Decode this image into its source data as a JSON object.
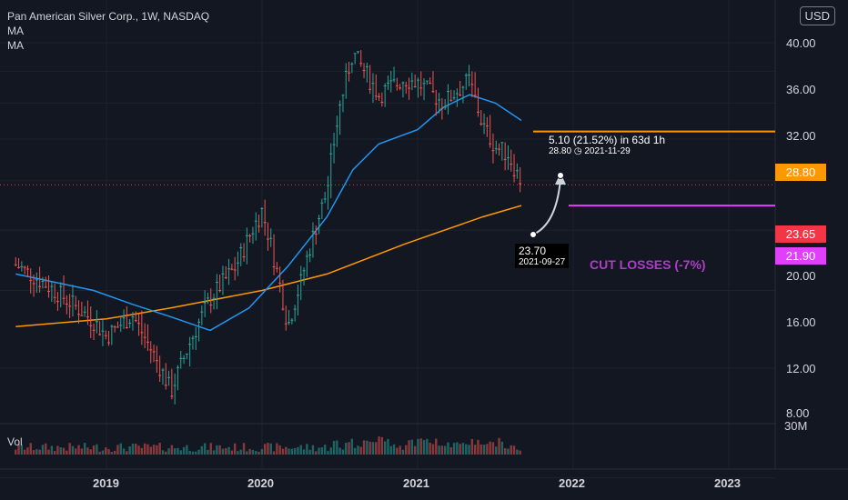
{
  "header": {
    "symbol": "Pan American Silver Corp., 1W, NASDAQ",
    "ma1": "MA",
    "ma2": "MA",
    "currency": "USD"
  },
  "volume": {
    "label": "Vol",
    "axis_label": "30M"
  },
  "yaxis": {
    "ticks": [
      "40.00",
      "36.00",
      "32.00",
      "28.80",
      "23.65",
      "21.90",
      "20.00",
      "16.00",
      "12.00",
      "8.00"
    ]
  },
  "xaxis": {
    "ticks": [
      "2019",
      "2020",
      "2021",
      "2022",
      "2023"
    ]
  },
  "price_tags": [
    {
      "label": "28.80",
      "color": "#ff9800"
    },
    {
      "label": "23.65",
      "color": "#f23645"
    },
    {
      "label": "21.90",
      "color": "#e040fb"
    }
  ],
  "annotations": {
    "move": "5.10 (21.52%) in 63d 1h",
    "move_target": "28.80",
    "move_date": "2021-11-29",
    "current": "23.70",
    "current_date": "2021-09-27",
    "cut": "CUT LOSSES (-7%)"
  },
  "colors": {
    "up": "#26a69a",
    "down": "#ef5350",
    "ma_fast": "#2196f3",
    "ma_slow": "#ff9800",
    "target": "#ff9800",
    "stop": "#e040fb",
    "last": "#f23645"
  },
  "chart_data": {
    "type": "candlestick",
    "title": "Pan American Silver Corp., 1W, NASDAQ",
    "ylim": [
      8,
      42
    ],
    "y_scale": "log",
    "x_range": [
      "2018-06",
      "2023-06"
    ],
    "price_points": [
      [
        "2018-06",
        17.6
      ],
      [
        "2018-09",
        16.0
      ],
      [
        "2018-12",
        14.3
      ],
      [
        "2019-01",
        13.5
      ],
      [
        "2019-03",
        14.6
      ],
      [
        "2019-05",
        12.2
      ],
      [
        "2019-06",
        11.0
      ],
      [
        "2019-09",
        15.5
      ],
      [
        "2019-11",
        17.5
      ],
      [
        "2020-01",
        21.5
      ],
      [
        "2020-03",
        14.0
      ],
      [
        "2020-04",
        16.5
      ],
      [
        "2020-06",
        23.0
      ],
      [
        "2020-07",
        31.5
      ],
      [
        "2020-08",
        38.5
      ],
      [
        "2020-10",
        33.0
      ],
      [
        "2020-12",
        35.0
      ],
      [
        "2021-01",
        34.5
      ],
      [
        "2021-03",
        32.0
      ],
      [
        "2021-05",
        34.8
      ],
      [
        "2021-06",
        29.5
      ],
      [
        "2021-07",
        27.2
      ],
      [
        "2021-08",
        26.5
      ],
      [
        "2021-09",
        23.7
      ]
    ],
    "ma_fast": [
      [
        "2018-06",
        17.0
      ],
      [
        "2018-12",
        16.0
      ],
      [
        "2019-03",
        15.2
      ],
      [
        "2019-06",
        14.5
      ],
      [
        "2019-09",
        13.8
      ],
      [
        "2019-12",
        15.0
      ],
      [
        "2020-03",
        17.5
      ],
      [
        "2020-06",
        21.0
      ],
      [
        "2020-08",
        25.0
      ],
      [
        "2020-10",
        27.5
      ],
      [
        "2021-01",
        29.0
      ],
      [
        "2021-03",
        31.5
      ],
      [
        "2021-05",
        33.0
      ],
      [
        "2021-07",
        32.0
      ],
      [
        "2021-09",
        30.0
      ]
    ],
    "ma_slow": [
      [
        "2018-06",
        14.0
      ],
      [
        "2019-01",
        14.4
      ],
      [
        "2019-06",
        15.0
      ],
      [
        "2020-01",
        16.0
      ],
      [
        "2020-06",
        17.0
      ],
      [
        "2020-12",
        19.0
      ],
      [
        "2021-06",
        21.0
      ],
      [
        "2021-09",
        21.9
      ]
    ],
    "levels": {
      "target": 28.8,
      "last": 23.65,
      "stop": 21.9,
      "current": 23.7
    },
    "volume_max_label": "30M"
  }
}
